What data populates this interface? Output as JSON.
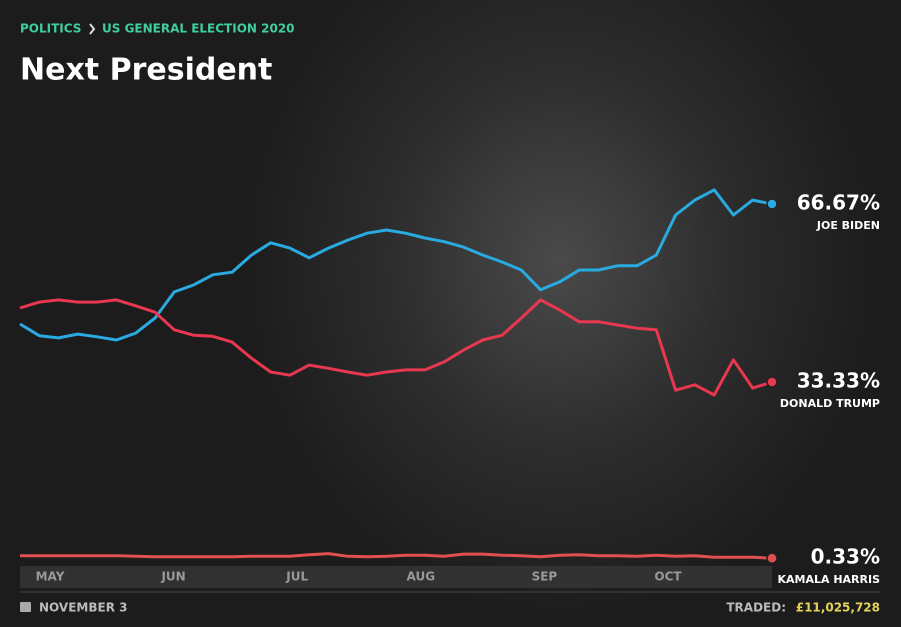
{
  "breadcrumb": {
    "section": "POLITICS",
    "page": "US GENERAL ELECTION 2020"
  },
  "footer": {
    "date": "NOVEMBER 3",
    "traded_label": "TRADED:",
    "traded_amount": "£11,025,728"
  },
  "chart_data": {
    "type": "line",
    "title": "Next President",
    "x_labels": [
      "MAY",
      "JUN",
      "JUL",
      "AUG",
      "SEP",
      "OCT"
    ],
    "series": [
      {
        "name": "JOE BIDEN",
        "color": "#29aae1",
        "values": [
          44.2,
          42,
          41.6,
          42.3,
          41.8,
          41.2,
          42.5,
          45.3,
          50.2,
          51.5,
          53.4,
          53.9,
          57.1,
          59.4,
          58.4,
          56.6,
          58.4,
          59.9,
          61.2,
          61.8,
          61.2,
          60.3,
          59.6,
          58.6,
          57.1,
          55.8,
          54.3,
          50.6,
          52.1,
          54.3,
          54.3,
          55.1,
          55.1,
          57.1,
          64.6,
          67.4,
          69.3,
          64.6,
          67.4,
          66.67
        ],
        "value_labels": [
          null,
          null,
          null,
          null,
          null,
          null,
          null,
          null,
          null,
          null,
          null,
          null,
          null,
          null,
          null,
          null,
          null,
          null,
          null,
          null,
          null,
          null,
          null,
          null,
          null,
          null,
          null,
          null,
          null,
          null,
          null,
          null,
          null,
          null,
          null,
          null,
          null,
          null,
          null,
          "66.67%"
        ]
      },
      {
        "name": "DONALD TRUMP",
        "color": "#e8384f",
        "values": [
          47.2,
          48.3,
          48.7,
          48.3,
          48.3,
          48.7,
          47.6,
          46.4,
          43.1,
          42.1,
          41.9,
          40.8,
          37.8,
          35.2,
          34.6,
          36.5,
          35.9,
          35.2,
          34.6,
          35.2,
          35.6,
          35.6,
          37.1,
          39.3,
          41.2,
          42.1,
          45.3,
          48.7,
          46.8,
          44.6,
          44.6,
          44.0,
          43.4,
          43.1,
          31.8,
          32.8,
          30.9,
          37.5,
          32.2,
          33.33
        ],
        "value_labels": [
          null,
          null,
          null,
          null,
          null,
          null,
          null,
          null,
          null,
          null,
          null,
          null,
          null,
          null,
          null,
          null,
          null,
          null,
          null,
          null,
          null,
          null,
          null,
          null,
          null,
          null,
          null,
          null,
          null,
          null,
          null,
          null,
          null,
          null,
          null,
          null,
          null,
          null,
          null,
          "33.33%"
        ]
      },
      {
        "name": "KAMALA HARRIS",
        "color": "#e05050",
        "values": [
          0.8,
          0.8,
          0.8,
          0.8,
          0.8,
          0.8,
          0.7,
          0.6,
          0.6,
          0.6,
          0.6,
          0.6,
          0.7,
          0.7,
          0.7,
          1.0,
          1.2,
          0.7,
          0.6,
          0.7,
          0.9,
          0.9,
          0.7,
          1.1,
          1.1,
          0.9,
          0.8,
          0.6,
          0.9,
          1.0,
          0.8,
          0.8,
          0.7,
          0.9,
          0.7,
          0.8,
          0.5,
          0.5,
          0.5,
          0.33
        ],
        "value_labels": [
          null,
          null,
          null,
          null,
          null,
          null,
          null,
          null,
          null,
          null,
          null,
          null,
          null,
          null,
          null,
          null,
          null,
          null,
          null,
          null,
          null,
          null,
          null,
          null,
          null,
          null,
          null,
          null,
          null,
          null,
          null,
          null,
          null,
          null,
          null,
          null,
          null,
          null,
          null,
          "0.33%"
        ]
      }
    ]
  }
}
